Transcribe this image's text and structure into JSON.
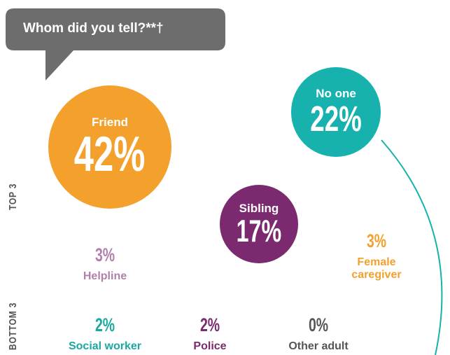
{
  "chart_data": {
    "type": "bubble",
    "title": "Whom did you tell?**†",
    "groups": [
      "TOP 3",
      "BOTTOM 3"
    ],
    "categories": [
      "Friend",
      "No one",
      "Sibling",
      "Helpline",
      "Female caregiver",
      "Social worker",
      "Police",
      "Other adult"
    ],
    "values": [
      42,
      22,
      17,
      3,
      3,
      2,
      2,
      0
    ],
    "value_labels": [
      "42%",
      "22%",
      "17%",
      "3%",
      "3%",
      "2%",
      "2%",
      "0%"
    ],
    "group_of": [
      0,
      0,
      0,
      1,
      1,
      1,
      1,
      1
    ],
    "colors": [
      "#f4a02c",
      "#17b2ad",
      "#7c2a6f",
      "#b27fab",
      "#f4a02c",
      "#19a9a2",
      "#7c2a6f",
      "#555555"
    ]
  }
}
